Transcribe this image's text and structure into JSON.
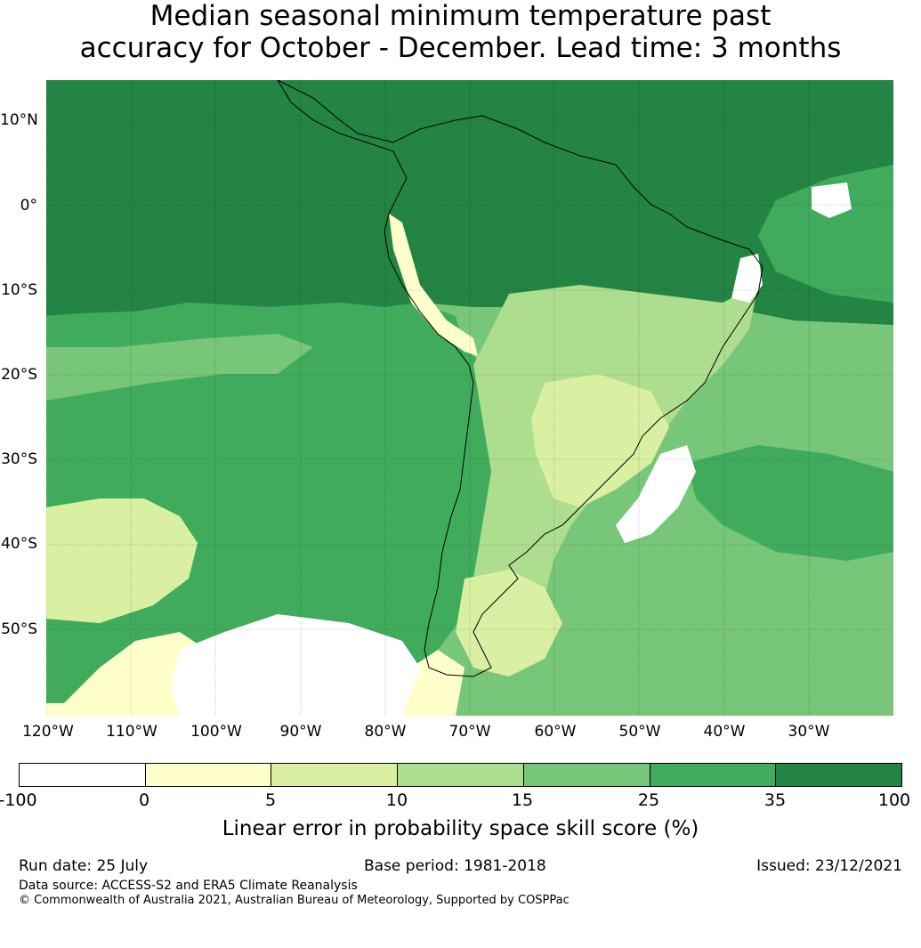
{
  "title": {
    "line1": "Median seasonal minimum temperature past",
    "line2": "accuracy for October - December. Lead time: 3 months"
  },
  "lat_labels": [
    "10°N",
    "0°",
    "10°S",
    "20°S",
    "30°S",
    "40°S",
    "50°S"
  ],
  "lon_labels": [
    "120°W",
    "110°W",
    "100°W",
    "90°W",
    "80°W",
    "70°W",
    "60°W",
    "50°W",
    "40°W",
    "30°W"
  ],
  "colorbar": {
    "ticks": [
      "-100",
      "0",
      "5",
      "10",
      "15",
      "25",
      "35",
      "100"
    ],
    "colors": [
      "#ffffff",
      "#ffffcc",
      "#d9f0a3",
      "#addd8e",
      "#78c679",
      "#41ab5d",
      "#238443"
    ],
    "label": "Linear error in probability space skill score (%)"
  },
  "footer": {
    "run_date": "Run date: 25 July",
    "base_period": "Base period: 1981-2018",
    "issued": "Issued: 23/12/2021",
    "data_source": "Data source: ACCESS-S2 and ERA5 Climate Reanalysis",
    "copyright": "© Commonwealth of Australia 2021, Australian Bureau of Meteorology, Supported by COSPPac"
  },
  "map": {
    "lon_range": [
      -125,
      -25
    ],
    "lat_range": [
      -60,
      15
    ],
    "background_color": "#78c679"
  }
}
